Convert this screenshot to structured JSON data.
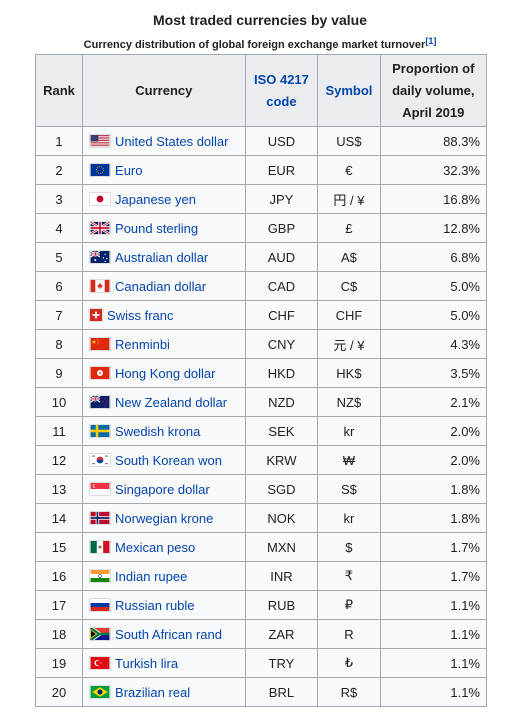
{
  "caption": {
    "title": "Most traded currencies by value",
    "subtitle": "Currency distribution of global foreign exchange market turnover",
    "ref": "[1]"
  },
  "headers": {
    "rank": "Rank",
    "currency": "Currency",
    "iso": "ISO 4217 code",
    "symbol": "Symbol",
    "proportion": "Proportion of daily volume, April 2019"
  },
  "rows": [
    {
      "rank": "1",
      "currency": "United States dollar",
      "code": "USD",
      "symbol": "US$",
      "proportion": "88.3%",
      "flag": "us"
    },
    {
      "rank": "2",
      "currency": "Euro",
      "code": "EUR",
      "symbol": "€",
      "proportion": "32.3%",
      "flag": "eu"
    },
    {
      "rank": "3",
      "currency": "Japanese yen",
      "code": "JPY",
      "symbol": "円 / ¥",
      "proportion": "16.8%",
      "flag": "jp"
    },
    {
      "rank": "4",
      "currency": "Pound sterling",
      "code": "GBP",
      "symbol": "£",
      "proportion": "12.8%",
      "flag": "gb"
    },
    {
      "rank": "5",
      "currency": "Australian dollar",
      "code": "AUD",
      "symbol": "A$",
      "proportion": "6.8%",
      "flag": "au"
    },
    {
      "rank": "6",
      "currency": "Canadian dollar",
      "code": "CAD",
      "symbol": "C$",
      "proportion": "5.0%",
      "flag": "ca"
    },
    {
      "rank": "7",
      "currency": "Swiss franc",
      "code": "CHF",
      "symbol": "CHF",
      "proportion": "5.0%",
      "flag": "ch"
    },
    {
      "rank": "8",
      "currency": "Renminbi",
      "code": "CNY",
      "symbol": "元 / ¥",
      "proportion": "4.3%",
      "flag": "cn"
    },
    {
      "rank": "9",
      "currency": "Hong Kong dollar",
      "code": "HKD",
      "symbol": "HK$",
      "proportion": "3.5%",
      "flag": "hk"
    },
    {
      "rank": "10",
      "currency": "New Zealand dollar",
      "code": "NZD",
      "symbol": "NZ$",
      "proportion": "2.1%",
      "flag": "nz"
    },
    {
      "rank": "11",
      "currency": "Swedish krona",
      "code": "SEK",
      "symbol": "kr",
      "proportion": "2.0%",
      "flag": "se"
    },
    {
      "rank": "12",
      "currency": "South Korean won",
      "code": "KRW",
      "symbol": "₩",
      "proportion": "2.0%",
      "flag": "kr"
    },
    {
      "rank": "13",
      "currency": "Singapore dollar",
      "code": "SGD",
      "symbol": "S$",
      "proportion": "1.8%",
      "flag": "sg"
    },
    {
      "rank": "14",
      "currency": "Norwegian krone",
      "code": "NOK",
      "symbol": "kr",
      "proportion": "1.8%",
      "flag": "no"
    },
    {
      "rank": "15",
      "currency": "Mexican peso",
      "code": "MXN",
      "symbol": "$",
      "proportion": "1.7%",
      "flag": "mx"
    },
    {
      "rank": "16",
      "currency": "Indian rupee",
      "code": "INR",
      "symbol": "₹",
      "proportion": "1.7%",
      "flag": "in"
    },
    {
      "rank": "17",
      "currency": "Russian ruble",
      "code": "RUB",
      "symbol": "₽",
      "proportion": "1.1%",
      "flag": "ru"
    },
    {
      "rank": "18",
      "currency": "South African rand",
      "code": "ZAR",
      "symbol": "R",
      "proportion": "1.1%",
      "flag": "za"
    },
    {
      "rank": "19",
      "currency": "Turkish lira",
      "code": "TRY",
      "symbol": "₺",
      "proportion": "1.1%",
      "flag": "tr"
    },
    {
      "rank": "20",
      "currency": "Brazilian real",
      "code": "BRL",
      "symbol": "R$",
      "proportion": "1.1%",
      "flag": "br"
    }
  ],
  "colors": {
    "link": "#0645ad",
    "header_bg": "#eaecf0",
    "cell_bg": "#f8f9fa",
    "border": "#a2a9b1"
  }
}
